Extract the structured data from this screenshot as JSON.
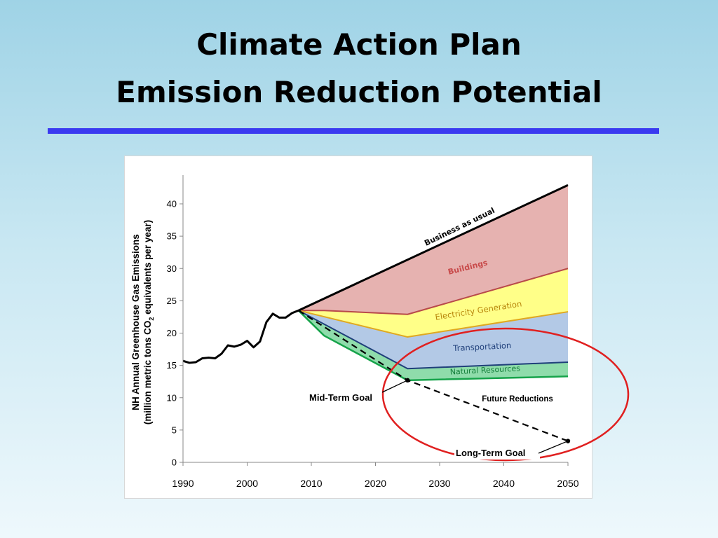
{
  "slide": {
    "title_line1": "Climate Action Plan",
    "title_line2": "Emission Reduction Potential"
  },
  "colors": {
    "rule": "#3a3af0",
    "buildings": "#e6b2b0",
    "buildings_line": "#b84a4a",
    "electricity": "#ffff88",
    "electricity_line": "#e0a820",
    "transportation": "#b3c9e6",
    "transportation_line": "#1f3f7a",
    "natural_resources": "#8fdcab",
    "natural_resources_line": "#16a34a",
    "circle": "#e02020"
  },
  "chart_data": {
    "type": "area",
    "ylabel_line1": "NH Annual Greenhouse Gas Emissions",
    "ylabel_line2_pre": "(million metric tons CO",
    "ylabel_line2_sub": "2",
    "ylabel_line2_post": " equivalents per year)",
    "xlim": [
      1990,
      2050
    ],
    "ylim": [
      0,
      44
    ],
    "x_ticks": [
      1990,
      2000,
      2010,
      2020,
      2030,
      2040,
      2050
    ],
    "y_ticks": [
      0,
      5,
      10,
      15,
      20,
      25,
      30,
      35,
      40
    ],
    "historical": {
      "x": [
        1990,
        1991,
        1992,
        1993,
        1994,
        1995,
        1996,
        1997,
        1998,
        1999,
        2000,
        2001,
        2002,
        2003,
        2004,
        2005,
        2006,
        2007,
        2008
      ],
      "y": [
        15.7,
        15.4,
        15.5,
        16.1,
        16.2,
        16.1,
        16.8,
        18.1,
        17.9,
        18.2,
        18.8,
        17.8,
        18.7,
        21.7,
        23.0,
        22.4,
        22.4,
        23.1,
        23.5
      ]
    },
    "series": [
      {
        "name": "Business as usual",
        "x": [
          2008,
          2050
        ],
        "y": [
          23.5,
          42.9
        ]
      },
      {
        "name": "Buildings",
        "x": [
          2008,
          2012,
          2025,
          2050
        ],
        "y": [
          23.5,
          23.5,
          22.9,
          30.0
        ]
      },
      {
        "name": "Electricity Generation",
        "x": [
          2008,
          2025,
          2050
        ],
        "y": [
          23.5,
          19.4,
          23.3
        ]
      },
      {
        "name": "Transportation",
        "x": [
          2008,
          2025,
          2050
        ],
        "y": [
          23.5,
          14.5,
          15.5
        ]
      },
      {
        "name": "Natural Resources",
        "x": [
          2008,
          2012,
          2025,
          2050
        ],
        "y": [
          23.5,
          19.6,
          12.7,
          13.3
        ]
      }
    ],
    "goals": [
      {
        "label": "Mid-Term Goal",
        "x": 2025,
        "y": 12.7
      },
      {
        "label": "Long-Term Goal",
        "x": 2050,
        "y": 3.3
      }
    ],
    "annotations": {
      "bau": "Business as usual",
      "buildings": "Buildings",
      "electricity": "Electricity Generation",
      "transportation": "Transportation",
      "natural_resources": "Natural Resources",
      "future_reductions": "Future Reductions",
      "mid_term_goal": "Mid-Term Goal",
      "long_term_goal": "Long-Term Goal"
    }
  }
}
